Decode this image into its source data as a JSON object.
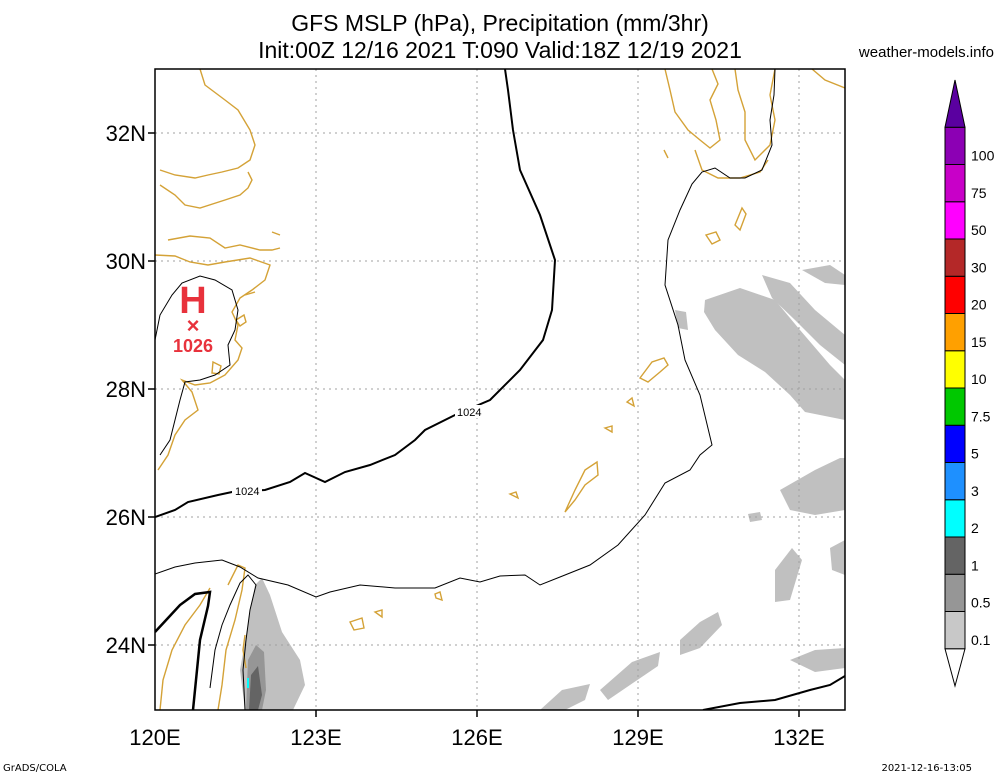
{
  "header": {
    "title_line1": "GFS MSLP (hPa), Precipitation (mm/3hr)",
    "title_line2": "Init:00Z 12/16 2021 T:090 Valid:18Z 12/19 2021",
    "site": "weather-models.info"
  },
  "footer": {
    "left": "GrADS/COLA",
    "right": "2021-12-16-13:05"
  },
  "map": {
    "lat_ticks": [
      "24N",
      "26N",
      "28N",
      "30N",
      "32N"
    ],
    "lon_ticks": [
      "120E",
      "123E",
      "126E",
      "129E",
      "132E"
    ],
    "contour_labels": [
      "1024",
      "1024"
    ],
    "high_center": {
      "symbol": "H",
      "marker": "×",
      "value": "1026"
    },
    "colors": {
      "coast": "#d4a237",
      "high": "#e8323c",
      "grid": "#a0a0a0"
    }
  },
  "colorbar": {
    "labels": [
      "0.1",
      "0.5",
      "1",
      "2",
      "3",
      "5",
      "7.5",
      "10",
      "15",
      "20",
      "30",
      "50",
      "75",
      "100"
    ],
    "colors": [
      "#c8c8c8",
      "#969696",
      "#646464",
      "#00ffff",
      "#1e90ff",
      "#0000ff",
      "#00c800",
      "#ffff00",
      "#ffa000",
      "#ff0000",
      "#b42828",
      "#ff00ff",
      "#c800c8",
      "#8c00b4",
      "#5a00a0"
    ]
  }
}
